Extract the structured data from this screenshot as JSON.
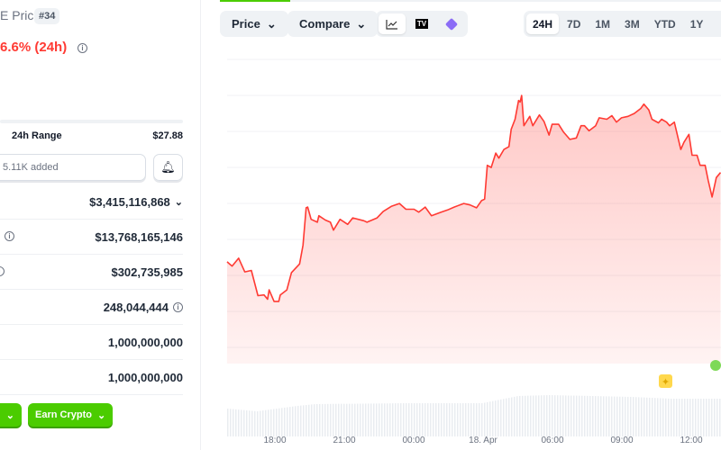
{
  "coin": {
    "title_fragment": "E Price",
    "rank": "#34",
    "change": "6.6% (24h)",
    "range_label": "24h Range",
    "range_high": "$27.88",
    "watchlist_text": "5.11K added"
  },
  "stats": [
    {
      "value": "$3,415,116,868",
      "chevron": true
    },
    {
      "value": "$13,768,165,146",
      "info": true
    },
    {
      "value": "$302,735,985",
      "info": true
    },
    {
      "value": "248,044,444",
      "value_info": true
    },
    {
      "value": "1,000,000,000"
    },
    {
      "value": "1,000,000,000"
    }
  ],
  "actions": {
    "earn": "Earn Crypto"
  },
  "toolbar": {
    "price": "Price",
    "compare": "Compare",
    "ranges": [
      "24H",
      "7D",
      "1M",
      "3M",
      "YTD",
      "1Y"
    ],
    "selected_range": "24H",
    "chart_icons": [
      "line-chart-icon",
      "tradingview-icon",
      "diamond-icon"
    ]
  },
  "colors": {
    "line": "#ff3a33",
    "accent": "#4bcc00"
  },
  "chart_data": {
    "type": "area",
    "x_ticks": [
      "18:00",
      "21:00",
      "00:00",
      "18. Apr",
      "06:00",
      "09:00",
      "12:00"
    ],
    "grid": true,
    "points": [
      [
        "15:56",
        25.57
      ],
      [
        "16:09",
        25.51
      ],
      [
        "16:26",
        25.62
      ],
      [
        "16:42",
        25.43
      ],
      [
        "16:59",
        25.45
      ],
      [
        "17:16",
        25.1
      ],
      [
        "17:32",
        25.11
      ],
      [
        "17:41",
        25.05
      ],
      [
        "17:45",
        25.18
      ],
      [
        "17:58",
        25.02
      ],
      [
        "18:10",
        25.02
      ],
      [
        "18:14",
        25.11
      ],
      [
        "18:31",
        25.18
      ],
      [
        "18:43",
        25.42
      ],
      [
        "19:04",
        25.54
      ],
      [
        "19:13",
        25.8
      ],
      [
        "19:21",
        26.32
      ],
      [
        "19:25",
        26.33
      ],
      [
        "19:34",
        26.16
      ],
      [
        "19:50",
        26.12
      ],
      [
        "19:54",
        26.21
      ],
      [
        "20:11",
        26.15
      ],
      [
        "20:24",
        26.12
      ],
      [
        "20:32",
        26.01
      ],
      [
        "20:49",
        26.16
      ],
      [
        "21:09",
        26.09
      ],
      [
        "21:22",
        26.18
      ],
      [
        "21:51",
        26.14
      ],
      [
        "21:59",
        26.12
      ],
      [
        "22:25",
        26.18
      ],
      [
        "22:41",
        26.27
      ],
      [
        "23:02",
        26.34
      ],
      [
        "23:23",
        26.38
      ],
      [
        "23:40",
        26.3
      ],
      [
        "00:01",
        26.3
      ],
      [
        "00:13",
        26.26
      ],
      [
        "00:30",
        26.33
      ],
      [
        "00:46",
        26.21
      ],
      [
        "01:11",
        26.26
      ],
      [
        "01:28",
        26.29
      ],
      [
        "01:45",
        26.33
      ],
      [
        "02:10",
        26.38
      ],
      [
        "02:26",
        26.36
      ],
      [
        "02:43",
        26.32
      ],
      [
        "02:56",
        26.42
      ],
      [
        "03:04",
        26.44
      ],
      [
        "03:11",
        26.91
      ],
      [
        "03:21",
        26.88
      ],
      [
        "03:33",
        27.08
      ],
      [
        "03:41",
        27.01
      ],
      [
        "03:54",
        27.13
      ],
      [
        "04:07",
        27.17
      ],
      [
        "04:13",
        27.41
      ],
      [
        "04:23",
        27.55
      ],
      [
        "04:32",
        27.81
      ],
      [
        "04:36",
        27.79
      ],
      [
        "04:40",
        27.88
      ],
      [
        "04:46",
        27.46
      ],
      [
        "05:01",
        27.59
      ],
      [
        "05:09",
        27.46
      ],
      [
        "05:26",
        27.61
      ],
      [
        "05:38",
        27.52
      ],
      [
        "05:51",
        27.33
      ],
      [
        "05:59",
        27.48
      ],
      [
        "06:16",
        27.48
      ],
      [
        "06:29",
        27.37
      ],
      [
        "06:45",
        27.27
      ],
      [
        "07:02",
        27.29
      ],
      [
        "07:14",
        27.46
      ],
      [
        "07:23",
        27.46
      ],
      [
        "07:35",
        27.39
      ],
      [
        "07:52",
        27.46
      ],
      [
        "08:01",
        27.57
      ],
      [
        "08:21",
        27.55
      ],
      [
        "08:34",
        27.6
      ],
      [
        "08:46",
        27.51
      ],
      [
        "08:59",
        27.57
      ],
      [
        "09:16",
        27.59
      ],
      [
        "09:32",
        27.63
      ],
      [
        "09:49",
        27.7
      ],
      [
        "09:57",
        27.76
      ],
      [
        "10:10",
        27.68
      ],
      [
        "10:18",
        27.55
      ],
      [
        "10:35",
        27.5
      ],
      [
        "10:43",
        27.55
      ],
      [
        "10:56",
        27.51
      ],
      [
        "11:04",
        27.46
      ],
      [
        "11:16",
        27.51
      ],
      [
        "11:33",
        27.13
      ],
      [
        "11:41",
        27.23
      ],
      [
        "11:54",
        27.34
      ],
      [
        "12:02",
        27.05
      ],
      [
        "12:15",
        27.05
      ],
      [
        "12:23",
        26.91
      ],
      [
        "12:36",
        26.91
      ],
      [
        "12:44",
        26.7
      ],
      [
        "12:54",
        26.47
      ],
      [
        "13:05",
        26.74
      ],
      [
        "13:16",
        26.81
      ]
    ]
  }
}
